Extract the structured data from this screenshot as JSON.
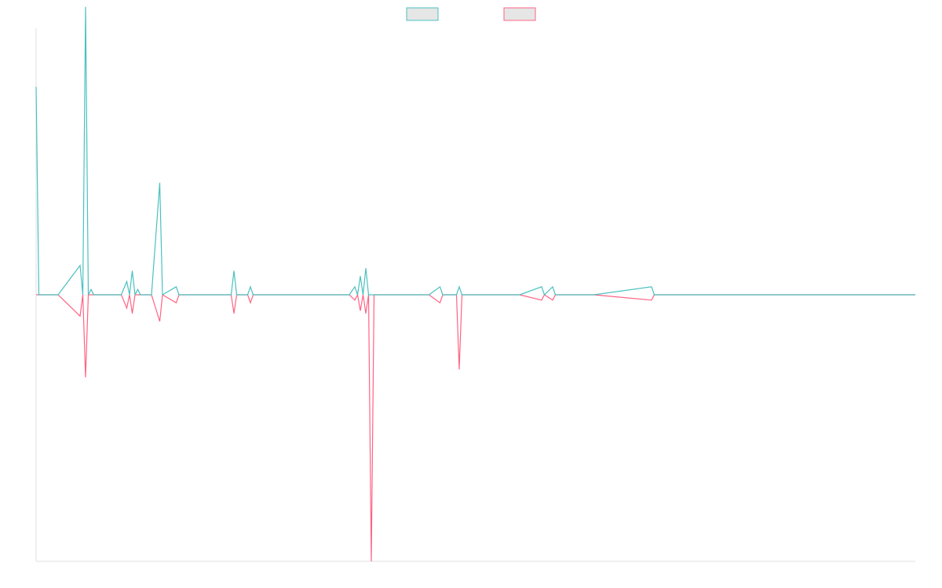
{
  "chart_data": {
    "type": "line",
    "title": "",
    "xlabel": "",
    "ylabel": "",
    "grid": false,
    "legend_position": "top-center",
    "xlim": [
      0,
      320
    ],
    "ylim": [
      -100,
      100
    ],
    "series": [
      {
        "color": "#4bc0c0",
        "fill": "#e6e6e6",
        "points": [
          [
            0,
            78
          ],
          [
            1,
            0
          ],
          [
            8,
            0
          ],
          [
            16,
            11
          ],
          [
            17,
            0
          ],
          [
            18,
            108
          ],
          [
            19,
            0
          ],
          [
            20,
            2
          ],
          [
            21,
            0
          ],
          [
            31,
            0
          ],
          [
            33,
            5
          ],
          [
            34,
            0
          ],
          [
            35,
            9
          ],
          [
            36,
            0
          ],
          [
            37,
            2
          ],
          [
            38,
            0
          ],
          [
            42,
            0
          ],
          [
            45,
            42
          ],
          [
            46,
            0
          ],
          [
            51,
            3
          ],
          [
            52,
            0
          ],
          [
            57,
            0
          ],
          [
            71,
            0
          ],
          [
            72,
            9
          ],
          [
            73,
            0
          ],
          [
            74,
            0
          ],
          [
            77,
            0
          ],
          [
            78,
            3
          ],
          [
            79,
            0
          ],
          [
            80,
            0
          ],
          [
            83,
            0
          ],
          [
            92,
            0
          ],
          [
            110,
            0
          ],
          [
            113,
            0
          ],
          [
            114,
            0
          ],
          [
            116,
            3
          ],
          [
            117,
            0
          ],
          [
            118,
            7
          ],
          [
            119,
            0
          ],
          [
            120,
            10
          ],
          [
            121,
            0
          ],
          [
            122,
            0
          ],
          [
            131,
            0
          ],
          [
            135,
            0
          ],
          [
            138,
            0
          ],
          [
            140,
            0
          ],
          [
            143,
            0
          ],
          [
            147,
            3
          ],
          [
            148,
            0
          ],
          [
            150,
            0
          ],
          [
            153,
            0
          ],
          [
            154,
            3
          ],
          [
            155,
            0
          ],
          [
            173,
            0
          ],
          [
            176,
            0
          ],
          [
            184,
            3
          ],
          [
            185,
            0
          ],
          [
            188,
            3
          ],
          [
            189,
            0
          ],
          [
            190,
            0
          ],
          [
            192,
            0
          ],
          [
            203,
            0
          ],
          [
            224,
            3
          ],
          [
            225,
            0
          ],
          [
            320,
            0
          ]
        ]
      },
      {
        "color": "#ff6384",
        "fill": "#e6e6e6",
        "points": [
          [
            0,
            0
          ],
          [
            8,
            0
          ],
          [
            16,
            -8
          ],
          [
            17,
            0
          ],
          [
            18,
            -31
          ],
          [
            19,
            0
          ],
          [
            20,
            0
          ],
          [
            21,
            0
          ],
          [
            31,
            0
          ],
          [
            33,
            -5
          ],
          [
            34,
            0
          ],
          [
            35,
            -7
          ],
          [
            36,
            0
          ],
          [
            37,
            0
          ],
          [
            38,
            0
          ],
          [
            42,
            0
          ],
          [
            45,
            -10
          ],
          [
            46,
            0
          ],
          [
            51,
            -3
          ],
          [
            52,
            0
          ],
          [
            57,
            0
          ],
          [
            71,
            0
          ],
          [
            72,
            -7
          ],
          [
            73,
            0
          ],
          [
            74,
            0
          ],
          [
            77,
            0
          ],
          [
            78,
            -3
          ],
          [
            79,
            0
          ],
          [
            80,
            0
          ],
          [
            83,
            0
          ],
          [
            92,
            0
          ],
          [
            110,
            0
          ],
          [
            113,
            0
          ],
          [
            114,
            0
          ],
          [
            116,
            -2
          ],
          [
            117,
            0
          ],
          [
            118,
            -6
          ],
          [
            119,
            0
          ],
          [
            120,
            -7
          ],
          [
            121,
            0
          ],
          [
            122,
            -100
          ],
          [
            123,
            0
          ],
          [
            131,
            0
          ],
          [
            135,
            0
          ],
          [
            138,
            0
          ],
          [
            140,
            0
          ],
          [
            143,
            0
          ],
          [
            147,
            -3
          ],
          [
            148,
            0
          ],
          [
            150,
            0
          ],
          [
            153,
            0
          ],
          [
            154,
            -28
          ],
          [
            155,
            0
          ],
          [
            173,
            0
          ],
          [
            176,
            0
          ],
          [
            184,
            -2
          ],
          [
            185,
            0
          ],
          [
            188,
            -2
          ],
          [
            189,
            0
          ],
          [
            190,
            0
          ],
          [
            192,
            0
          ],
          [
            203,
            0
          ],
          [
            224,
            -2
          ],
          [
            225,
            0
          ],
          [
            320,
            0
          ]
        ]
      }
    ]
  }
}
